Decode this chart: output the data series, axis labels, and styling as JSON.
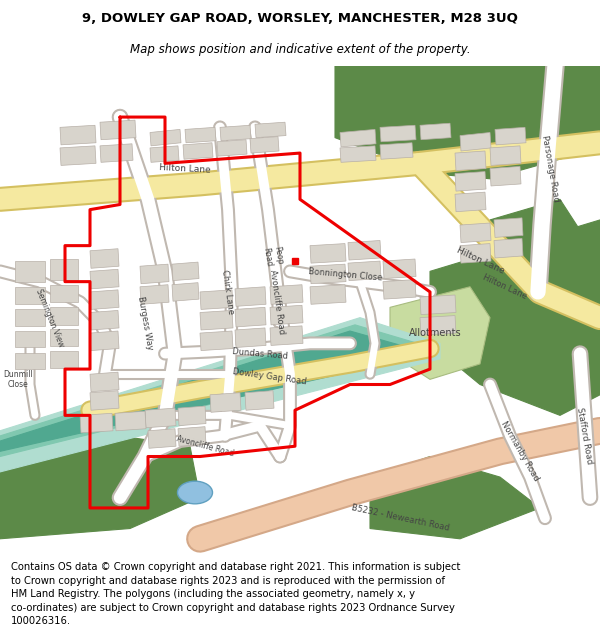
{
  "title": "9, DOWLEY GAP ROAD, WORSLEY, MANCHESTER, M28 3UQ",
  "subtitle": "Map shows position and indicative extent of the property.",
  "footer": "Contains OS data © Crown copyright and database right 2021. This information is subject\nto Crown copyright and database rights 2023 and is reproduced with the permission of\nHM Land Registry. The polygons (including the associated geometry, namely x, y\nco-ordinates) are subject to Crown copyright and database rights 2023 Ordnance Survey\n100026316.",
  "bg_color": "#f0ede8",
  "green_color": "#5c8a48",
  "green_light": "#8ab870",
  "road_fill": "#ffffff",
  "road_outline": "#c0b8b0",
  "yellow_road_fill": "#f5e9a0",
  "yellow_road_outline": "#d4c060",
  "pink_road_fill": "#f0c8a8",
  "pink_road_outline": "#d4a888",
  "teal_canal": "#80c8b0",
  "teal_dark": "#50a890",
  "teal_light": "#b0ddd0",
  "red_boundary": "#ee0000",
  "building_fill": "#d8d4cc",
  "building_outline": "#b8b0a8",
  "allotment_fill": "#c8dca0",
  "allotment_outline": "#a8bc80",
  "water_fill": "#90c0e0",
  "water_outline": "#60a0c0",
  "title_fs": 9.5,
  "subtitle_fs": 8.5,
  "footer_fs": 7.2
}
